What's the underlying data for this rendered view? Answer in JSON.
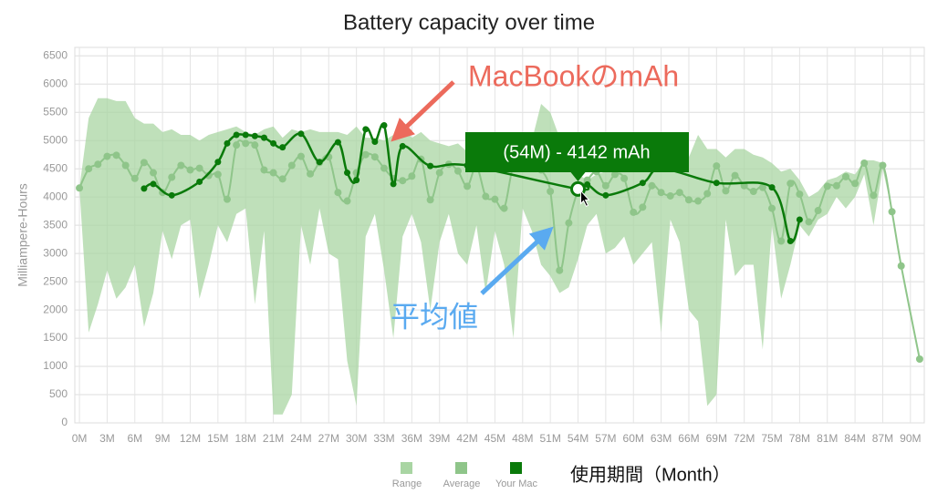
{
  "chart_data": {
    "type": "line",
    "title": "Battery capacity over time",
    "ylabel": "Milliampere-Hours",
    "xlabel": "使用期間（Month）",
    "xlim": [
      -0.5,
      91.5
    ],
    "ylim": [
      0,
      6650
    ],
    "yticks": [
      0,
      500,
      1000,
      1500,
      2000,
      2500,
      3000,
      3500,
      4000,
      4500,
      5000,
      5500,
      6000,
      6500
    ],
    "xticks": [
      {
        "value": 0,
        "label": "0M"
      },
      {
        "value": 3,
        "label": "3M"
      },
      {
        "value": 6,
        "label": "6M"
      },
      {
        "value": 9,
        "label": "9M"
      },
      {
        "value": 12,
        "label": "12M"
      },
      {
        "value": 15,
        "label": "15M"
      },
      {
        "value": 18,
        "label": "18M"
      },
      {
        "value": 21,
        "label": "21M"
      },
      {
        "value": 24,
        "label": "24M"
      },
      {
        "value": 27,
        "label": "27M"
      },
      {
        "value": 30,
        "label": "30M"
      },
      {
        "value": 33,
        "label": "33M"
      },
      {
        "value": 36,
        "label": "36M"
      },
      {
        "value": 39,
        "label": "39M"
      },
      {
        "value": 42,
        "label": "42M"
      },
      {
        "value": 45,
        "label": "45M"
      },
      {
        "value": 48,
        "label": "48M"
      },
      {
        "value": 51,
        "label": "51M"
      },
      {
        "value": 54,
        "label": "54M"
      },
      {
        "value": 57,
        "label": "57M"
      },
      {
        "value": 60,
        "label": "60M"
      },
      {
        "value": 63,
        "label": "63M"
      },
      {
        "value": 66,
        "label": "66M"
      },
      {
        "value": 69,
        "label": "69M"
      },
      {
        "value": 72,
        "label": "72M"
      },
      {
        "value": 75,
        "label": "75M"
      },
      {
        "value": 78,
        "label": "78M"
      },
      {
        "value": 81,
        "label": "81M"
      },
      {
        "value": 84,
        "label": "84M"
      },
      {
        "value": 87,
        "label": "87M"
      },
      {
        "value": 90,
        "label": "90M"
      }
    ],
    "grid": true,
    "series": [
      {
        "name": "Range",
        "kind": "range",
        "color": "#a9d5a3",
        "x": [
          0,
          1,
          2,
          3,
          4,
          5,
          6,
          7,
          8,
          9,
          10,
          11,
          12,
          13,
          14,
          15,
          16,
          17,
          18,
          19,
          20,
          21,
          22,
          23,
          24,
          25,
          26,
          27,
          28,
          29,
          30,
          31,
          32,
          33,
          34,
          35,
          36,
          37,
          38,
          39,
          40,
          41,
          42,
          43,
          44,
          45,
          46,
          47,
          48,
          49,
          50,
          51,
          52,
          53,
          54,
          55,
          56,
          57,
          58,
          59,
          60,
          61,
          62,
          63,
          64,
          65,
          66,
          67,
          68,
          69,
          70,
          71,
          72,
          73,
          74,
          75,
          76,
          77,
          78,
          79,
          80,
          81,
          82,
          83,
          84,
          85,
          86,
          87,
          88,
          89,
          91
        ],
        "high": [
          4160,
          5400,
          5750,
          5750,
          5700,
          5700,
          5400,
          5300,
          5300,
          5150,
          5200,
          5100,
          5100,
          5000,
          5100,
          5150,
          5200,
          5250,
          5150,
          5100,
          5200,
          5250,
          5050,
          5200,
          5150,
          5200,
          5150,
          5150,
          5150,
          5100,
          5250,
          5050,
          5050,
          5000,
          5100,
          5300,
          5050,
          5150,
          5000,
          4950,
          4900,
          4950,
          4800,
          4750,
          4950,
          4900,
          4800,
          4700,
          4650,
          5000,
          5650,
          5500,
          5050,
          4700,
          4400,
          4300,
          4400,
          4450,
          4700,
          4750,
          5050,
          4850,
          4800,
          4800,
          4750,
          4650,
          4700,
          5100,
          4850,
          4850,
          4700,
          4850,
          4850,
          4750,
          4700,
          4600,
          4450,
          4500,
          4300,
          4000,
          4100,
          4300,
          4350,
          4450,
          4400,
          4650,
          4650,
          4600,
          3740,
          2780,
          1130
        ],
        "low": [
          4160,
          1600,
          2100,
          2700,
          2200,
          2400,
          2800,
          1700,
          2300,
          3400,
          2900,
          3500,
          3600,
          2200,
          2800,
          3500,
          3200,
          3700,
          3800,
          2100,
          3400,
          150,
          150,
          500,
          3500,
          2800,
          3800,
          3000,
          2900,
          1100,
          300,
          3300,
          3700,
          2700,
          1500,
          3300,
          3700,
          3200,
          2000,
          3200,
          3700,
          3000,
          2800,
          3500,
          2300,
          3400,
          2800,
          1500,
          3800,
          3400,
          2800,
          2600,
          2300,
          2400,
          2900,
          3500,
          3700,
          3000,
          3100,
          3300,
          2800,
          3000,
          3200,
          1600,
          3600,
          3200,
          2000,
          1800,
          300,
          500,
          3600,
          2600,
          2800,
          2800,
          1300,
          3500,
          2200,
          2800,
          3500,
          3300,
          3600,
          3700,
          4000,
          3800,
          4000,
          4400,
          3500,
          4500,
          3740,
          2780,
          1130
        ]
      },
      {
        "name": "Average",
        "kind": "line",
        "color": "#8fc58a",
        "x": [
          0,
          1,
          2,
          3,
          4,
          5,
          6,
          7,
          8,
          9,
          10,
          11,
          12,
          13,
          14,
          15,
          16,
          17,
          18,
          19,
          20,
          21,
          22,
          23,
          24,
          25,
          26,
          27,
          28,
          29,
          30,
          31,
          32,
          33,
          34,
          35,
          36,
          37,
          38,
          39,
          40,
          41,
          42,
          43,
          44,
          45,
          46,
          47,
          48,
          49,
          50,
          51,
          52,
          53,
          54,
          55,
          56,
          57,
          58,
          59,
          60,
          61,
          62,
          63,
          64,
          65,
          66,
          67,
          68,
          69,
          70,
          71,
          72,
          73,
          74,
          75,
          76,
          77,
          78,
          79,
          80,
          81,
          82,
          83,
          84,
          85,
          86,
          87,
          88,
          89,
          91
        ],
        "values": [
          4160,
          4500,
          4580,
          4720,
          4740,
          4560,
          4330,
          4610,
          4430,
          4080,
          4350,
          4560,
          4480,
          4510,
          4380,
          4400,
          3960,
          4920,
          4950,
          4920,
          4480,
          4430,
          4320,
          4560,
          4720,
          4410,
          4610,
          4710,
          4080,
          3930,
          4430,
          4750,
          4710,
          4510,
          4330,
          4290,
          4370,
          4670,
          3950,
          4430,
          4580,
          4460,
          4190,
          4540,
          4010,
          3960,
          3800,
          4560,
          4510,
          4580,
          4480,
          4100,
          2700,
          3540,
          4110,
          4300,
          4450,
          4200,
          4400,
          4330,
          3730,
          3820,
          4200,
          4080,
          4020,
          4080,
          3950,
          3930,
          4060,
          4550,
          4110,
          4380,
          4200,
          4100,
          4170,
          3800,
          3220,
          4240,
          4050,
          3560,
          3760,
          4190,
          4200,
          4360,
          4240,
          4600,
          4030,
          4560,
          3740,
          2780,
          1130
        ]
      },
      {
        "name": "Your Mac",
        "kind": "line",
        "color": "#0a7a0a",
        "x": [
          7,
          8,
          10,
          13,
          15,
          16,
          17,
          18,
          19,
          20,
          21,
          22,
          24,
          26,
          28,
          29,
          30,
          31,
          32,
          33,
          34,
          35,
          38,
          42,
          54,
          55,
          57,
          61,
          63,
          69,
          75,
          77,
          78
        ],
        "values": [
          4150,
          4230,
          4030,
          4270,
          4620,
          4950,
          5100,
          5100,
          5080,
          5050,
          4950,
          4880,
          5120,
          4620,
          4970,
          4430,
          4300,
          5200,
          4980,
          5270,
          4230,
          4900,
          4550,
          4560,
          4142,
          4220,
          4030,
          4250,
          4500,
          4250,
          4170,
          3220,
          3600
        ]
      }
    ],
    "annotations": [
      {
        "text": "MacBookのmAh",
        "color": "#ec6a5c"
      },
      {
        "text": "平均値",
        "color": "#5aaaf0"
      },
      {
        "text": "(54M) - 4142 mAh",
        "color": "#0a7a0a"
      }
    ]
  }
}
